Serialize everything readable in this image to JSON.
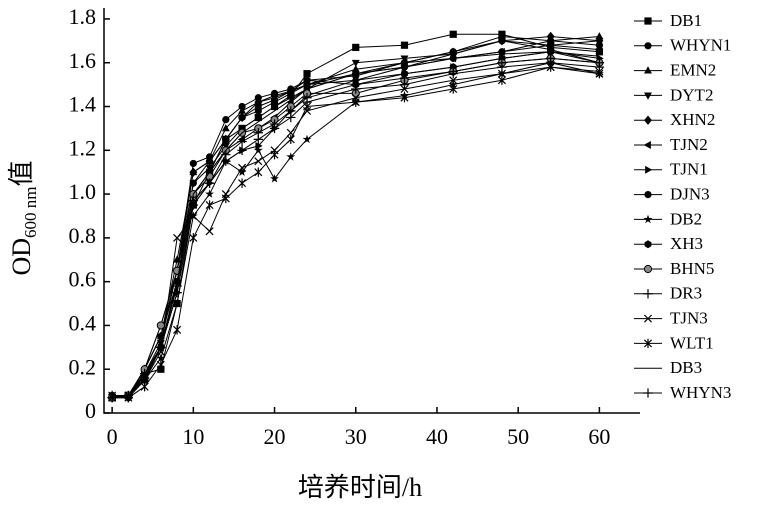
{
  "chart_data": {
    "type": "line",
    "x_label": "培养时间/h",
    "y_label": {
      "main": "OD",
      "sub": "600 nm",
      "suffix": "值"
    },
    "x": [
      0,
      2,
      4,
      6,
      8,
      10,
      12,
      14,
      16,
      18,
      20,
      22,
      24,
      30,
      36,
      42,
      48,
      54,
      60
    ],
    "xlim": [
      -1,
      65
    ],
    "xticks": [
      0,
      10,
      20,
      30,
      40,
      50,
      60
    ],
    "ylim": [
      0,
      1.85
    ],
    "yticks": [
      0,
      0.2,
      0.4,
      0.6,
      0.8,
      {
        "value": 1,
        "label": "1.0"
      },
      1.2,
      1.4,
      1.6,
      1.8
    ],
    "grid": false,
    "legend": "right",
    "series": [
      {
        "name": "DB1",
        "color": "#000000",
        "marker": "square",
        "values": [
          0.07,
          0.08,
          0.18,
          0.2,
          0.5,
          0.95,
          1.1,
          1.25,
          1.3,
          1.35,
          1.4,
          1.45,
          1.55,
          1.67,
          1.68,
          1.73,
          1.73,
          1.67,
          1.65
        ]
      },
      {
        "name": "WHYN1",
        "color": "#000000",
        "marker": "circle",
        "values": [
          0.08,
          0.07,
          0.15,
          0.3,
          0.6,
          1.05,
          1.15,
          1.25,
          1.35,
          1.38,
          1.42,
          1.46,
          1.5,
          1.55,
          1.58,
          1.62,
          1.65,
          1.7,
          1.68
        ]
      },
      {
        "name": "EMN2",
        "color": "#000000",
        "marker": "triangle-up",
        "values": [
          0.07,
          0.08,
          0.2,
          0.35,
          0.7,
          1.1,
          1.15,
          1.3,
          1.38,
          1.42,
          1.44,
          1.47,
          1.5,
          1.57,
          1.6,
          1.65,
          1.72,
          1.7,
          1.72
        ]
      },
      {
        "name": "DYT2",
        "color": "#000000",
        "marker": "triangle-down",
        "values": [
          0.07,
          0.08,
          0.18,
          0.32,
          0.65,
          1.05,
          1.12,
          1.22,
          1.3,
          1.35,
          1.4,
          1.44,
          1.48,
          1.6,
          1.62,
          1.64,
          1.7,
          1.68,
          1.7
        ]
      },
      {
        "name": "XHN2",
        "color": "#000000",
        "marker": "diamond",
        "values": [
          0.07,
          0.07,
          0.2,
          0.35,
          0.65,
          1.1,
          1.15,
          1.25,
          1.35,
          1.42,
          1.45,
          1.47,
          1.5,
          1.52,
          1.58,
          1.64,
          1.7,
          1.72,
          1.7
        ]
      },
      {
        "name": "TJN2",
        "color": "#000000",
        "marker": "triangle-left",
        "values": [
          0.07,
          0.08,
          0.18,
          0.3,
          0.6,
          1.0,
          1.1,
          1.2,
          1.25,
          1.3,
          1.35,
          1.42,
          1.48,
          1.55,
          1.6,
          1.62,
          1.65,
          1.68,
          1.66
        ]
      },
      {
        "name": "TJN1",
        "color": "#000000",
        "marker": "triangle-right",
        "values": [
          0.07,
          0.08,
          0.15,
          0.3,
          0.55,
          0.95,
          1.05,
          1.15,
          1.2,
          1.22,
          1.3,
          1.38,
          1.45,
          1.52,
          1.55,
          1.58,
          1.62,
          1.65,
          1.62
        ]
      },
      {
        "name": "DJN3",
        "color": "#000000",
        "marker": "circle",
        "values": [
          0.08,
          0.08,
          0.2,
          0.4,
          0.65,
          1.14,
          1.17,
          1.34,
          1.4,
          1.44,
          1.46,
          1.48,
          1.52,
          1.54,
          1.6,
          1.65,
          1.7,
          1.66,
          1.6
        ]
      },
      {
        "name": "DB2",
        "color": "#000000",
        "marker": "star",
        "values": [
          0.07,
          0.08,
          0.15,
          0.25,
          0.5,
          0.9,
          1.0,
          1.15,
          1.1,
          1.2,
          1.07,
          1.17,
          1.25,
          1.42,
          1.45,
          1.5,
          1.55,
          1.6,
          1.55
        ]
      },
      {
        "name": "XH3",
        "color": "#000000",
        "marker": "hexagon",
        "values": [
          0.08,
          0.08,
          0.2,
          0.35,
          0.6,
          1.0,
          1.1,
          1.25,
          1.35,
          1.4,
          1.43,
          1.47,
          1.52,
          1.5,
          1.55,
          1.58,
          1.62,
          1.65,
          1.6
        ]
      },
      {
        "name": "BHN5",
        "color": "#000000",
        "marker": "half-circle",
        "values": [
          0.07,
          0.08,
          0.2,
          0.4,
          0.65,
          1.0,
          1.08,
          1.2,
          1.28,
          1.3,
          1.34,
          1.4,
          1.46,
          1.46,
          1.52,
          1.56,
          1.6,
          1.62,
          1.6
        ]
      },
      {
        "name": "DR3",
        "color": "#000000",
        "marker": "plus",
        "values": [
          0.07,
          0.07,
          0.18,
          0.3,
          0.55,
          0.95,
          1.05,
          1.15,
          1.2,
          1.25,
          1.3,
          1.35,
          1.42,
          1.48,
          1.5,
          1.55,
          1.58,
          1.6,
          1.58
        ]
      },
      {
        "name": "TJN3",
        "color": "#000000",
        "marker": "x",
        "values": [
          0.07,
          0.08,
          0.15,
          0.28,
          0.8,
          0.9,
          0.83,
          1.0,
          1.12,
          1.15,
          1.2,
          1.28,
          1.38,
          1.44,
          1.48,
          1.52,
          1.55,
          1.58,
          1.56
        ]
      },
      {
        "name": "WLT1",
        "color": "#000000",
        "marker": "asterisk",
        "values": [
          0.08,
          0.07,
          0.12,
          0.22,
          0.38,
          0.8,
          0.95,
          0.98,
          1.05,
          1.1,
          1.18,
          1.25,
          1.4,
          1.42,
          1.44,
          1.48,
          1.52,
          1.58,
          1.55
        ]
      },
      {
        "name": "DB3",
        "color": "#000000",
        "marker": "none",
        "values": [
          0.07,
          0.08,
          0.17,
          0.3,
          0.6,
          1.0,
          1.1,
          1.2,
          1.28,
          1.33,
          1.38,
          1.43,
          1.48,
          1.55,
          1.58,
          1.62,
          1.64,
          1.65,
          1.63
        ]
      },
      {
        "name": "WHYN3",
        "color": "#000000",
        "marker": "plus",
        "values": [
          0.07,
          0.08,
          0.16,
          0.3,
          0.58,
          0.97,
          1.05,
          1.18,
          1.24,
          1.28,
          1.32,
          1.38,
          1.44,
          1.5,
          1.53,
          1.56,
          1.6,
          1.62,
          1.6
        ]
      }
    ]
  }
}
